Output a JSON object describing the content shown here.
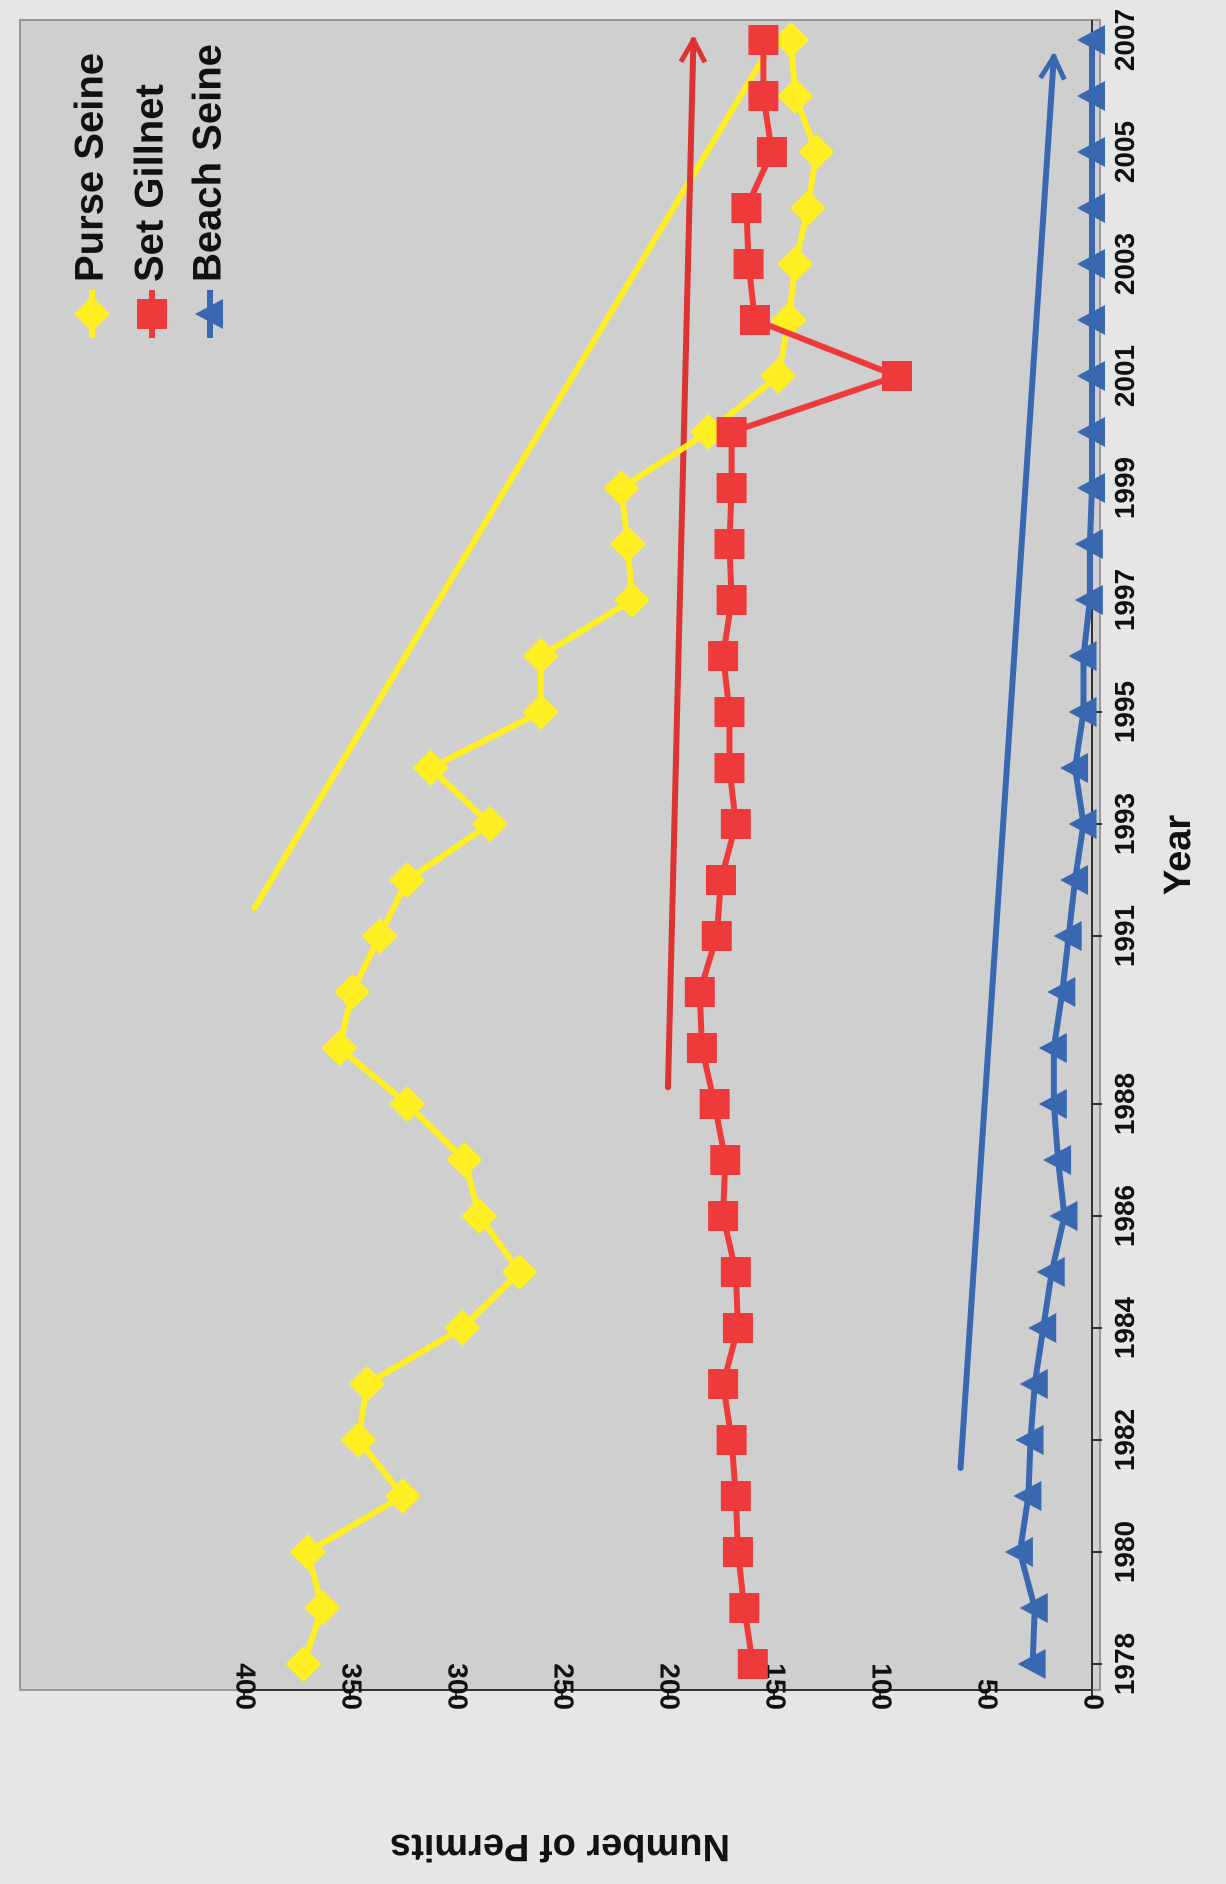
{
  "chart_data": {
    "type": "line",
    "title": "",
    "xlabel": "Year",
    "ylabel": "Number of Permits",
    "ylim": [
      0,
      400
    ],
    "yticks": [
      0,
      50,
      100,
      150,
      200,
      250,
      300,
      350,
      400
    ],
    "xticks": [
      1978,
      1980,
      1982,
      1984,
      1986,
      1988,
      1991,
      1993,
      1995,
      1997,
      1999,
      2001,
      2003,
      2005,
      2007
    ],
    "grid": false,
    "legend_position": "top-left",
    "orientation": "rotated-90-clockwise",
    "series": [
      {
        "name": "Purse Seine",
        "color": "#ffee22",
        "marker": "diamond",
        "x": [
          1978,
          1979,
          1980,
          1981,
          1982,
          1983,
          1984,
          1985,
          1986,
          1987,
          1988,
          1989,
          1990,
          1991,
          1992,
          1993,
          1994,
          1995,
          1996,
          1997,
          1998,
          1999,
          2000,
          2001,
          2002,
          2003,
          2004,
          2005,
          2006,
          2007
        ],
        "values": [
          372,
          363,
          370,
          325,
          346,
          342,
          297,
          270,
          289,
          296,
          323,
          355,
          349,
          336,
          323,
          284,
          312,
          260,
          260,
          217,
          219,
          222,
          181,
          148,
          143,
          140,
          134,
          130,
          140,
          142
        ]
      },
      {
        "name": "Set Gillnet",
        "color": "#ee3a3a",
        "marker": "square",
        "x": [
          1978,
          1979,
          1980,
          1981,
          1982,
          1983,
          1984,
          1985,
          1986,
          1987,
          1988,
          1989,
          1990,
          1991,
          1992,
          1993,
          1994,
          1995,
          1996,
          1997,
          1998,
          1999,
          2000,
          2001,
          2002,
          2003,
          2004,
          2005,
          2006,
          2007
        ],
        "values": [
          160,
          164,
          167,
          168,
          170,
          174,
          167,
          168,
          174,
          173,
          178,
          184,
          185,
          177,
          175,
          168,
          171,
          171,
          174,
          170,
          171,
          170,
          170,
          92,
          159,
          162,
          163,
          151,
          155,
          155
        ]
      },
      {
        "name": "Beach Seine",
        "color": "#3a68b0",
        "marker": "triangle",
        "x": [
          1978,
          1979,
          1980,
          1981,
          1982,
          1983,
          1984,
          1985,
          1986,
          1987,
          1988,
          1989,
          1990,
          1991,
          1992,
          1993,
          1994,
          1995,
          1996,
          1997,
          1998,
          1999,
          2000,
          2001,
          2002,
          2003,
          2004,
          2005,
          2006,
          2007
        ],
        "values": [
          28,
          27,
          34,
          30,
          29,
          27,
          23,
          19,
          13,
          16,
          18,
          18,
          14,
          11,
          8,
          4,
          8,
          4,
          4,
          1,
          1,
          0,
          0,
          0,
          0,
          0,
          0,
          0,
          0,
          0
        ]
      }
    ],
    "trend_lines": [
      {
        "series": "Purse Seine",
        "color": "#ffee22",
        "from": [
          1991.5,
          395
        ],
        "to": [
          2007,
          150
        ],
        "arrow": false
      },
      {
        "series": "Set Gillnet",
        "color": "#dd3333",
        "from": [
          1988.3,
          200
        ],
        "to": [
          2007,
          188
        ],
        "arrow": true
      },
      {
        "series": "Beach Seine",
        "color": "#3a68b0",
        "from": [
          1981.5,
          62
        ],
        "to": [
          2006.7,
          18
        ],
        "arrow": true
      }
    ]
  }
}
